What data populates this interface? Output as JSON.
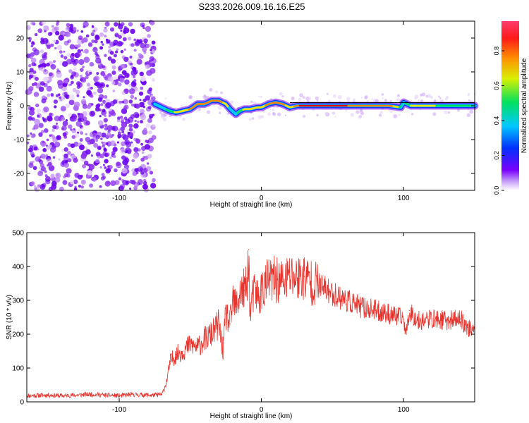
{
  "figure_title": "S233.2026.009.16.16.E25",
  "colors": {
    "snr_line": "#e8332c",
    "ridge_palette": [
      "#7a00ff",
      "#0040ff",
      "#00c8ff",
      "#00e060",
      "#ffe000",
      "#ff8000",
      "#e00000"
    ],
    "speckle_palette": [
      "#6a00f0",
      "#8a2cf0",
      "#b070f5",
      "#d0a8f8",
      "#e6d2fb"
    ]
  },
  "chart_data": [
    {
      "type": "heatmap",
      "xlabel": "Height of straight line (km)",
      "ylabel": "Frequency (Hz)",
      "xlim": [
        -165,
        150
      ],
      "ylim": [
        -25,
        25
      ],
      "xticks": [
        -100,
        0,
        100
      ],
      "yticks": [
        -20,
        -10,
        0,
        10,
        20
      ],
      "grid": false,
      "colorbar": {
        "label": "Normalized spectral amplitude",
        "range": [
          0,
          0.97
        ],
        "ticks": [
          "0.0",
          "0.2",
          "0.4",
          "0.6",
          "0.8"
        ]
      },
      "noise_region_x": [
        -165,
        -75
      ],
      "ridge": {
        "x": [
          -75,
          -70,
          -65,
          -60,
          -55,
          -50,
          -45,
          -40,
          -35,
          -30,
          -25,
          -22,
          -18,
          -15,
          -12,
          -8,
          -3,
          0,
          5,
          10,
          15,
          20,
          25,
          30,
          40,
          50,
          60,
          70,
          80,
          90,
          98,
          100,
          105,
          110,
          120,
          130,
          140,
          150
        ],
        "freq_hz": [
          0.5,
          -0.5,
          -1.5,
          -2,
          -1.5,
          -1,
          0.5,
          0.5,
          1.5,
          1.5,
          0.5,
          -1,
          -2.5,
          -1.5,
          -1,
          -1,
          -0.5,
          -0.5,
          0.5,
          1,
          0.5,
          -0.5,
          0,
          0,
          0,
          0,
          0,
          0,
          0,
          0,
          -0.5,
          1,
          0,
          0,
          0,
          0,
          0,
          0
        ],
        "amplitude": [
          0.4,
          0.3,
          0.5,
          0.6,
          0.7,
          0.75,
          0.8,
          0.85,
          0.9,
          0.85,
          0.7,
          0.4,
          0.3,
          0.5,
          0.7,
          0.7,
          0.6,
          0.6,
          0.8,
          0.85,
          0.8,
          0.6,
          0.9,
          0.95,
          0.95,
          0.92,
          0.92,
          0.9,
          0.85,
          0.85,
          0.5,
          0.3,
          0.6,
          0.7,
          0.6,
          0.55,
          0.5,
          0.4
        ]
      }
    },
    {
      "type": "line",
      "xlabel": "Height of straight line (km)",
      "ylabel": "SNR (10 * v/v)",
      "xlim": [
        -165,
        150
      ],
      "ylim": [
        0,
        500
      ],
      "xticks": [
        -100,
        0,
        100
      ],
      "yticks": [
        0,
        100,
        200,
        300,
        400,
        500
      ],
      "grid": false,
      "series": [
        {
          "x": [
            -165,
            -150,
            -140,
            -130,
            -120,
            -110,
            -100,
            -90,
            -80,
            -75,
            -70,
            -67,
            -64,
            -60,
            -55,
            -50,
            -45,
            -40,
            -35,
            -30,
            -27,
            -25,
            -22,
            -20,
            -18,
            -15,
            -12,
            -10,
            -9,
            -8,
            -6,
            -4,
            -2,
            0,
            5,
            10,
            15,
            20,
            25,
            30,
            35,
            40,
            50,
            60,
            70,
            80,
            90,
            100,
            102,
            104,
            110,
            120,
            130,
            140,
            145,
            150
          ],
          "y": [
            18,
            20,
            18,
            20,
            22,
            20,
            18,
            22,
            20,
            20,
            22,
            55,
            120,
            140,
            150,
            170,
            160,
            185,
            200,
            230,
            150,
            260,
            230,
            300,
            280,
            320,
            330,
            340,
            450,
            260,
            310,
            330,
            300,
            330,
            360,
            360,
            355,
            370,
            365,
            370,
            355,
            345,
            320,
            300,
            280,
            270,
            260,
            245,
            200,
            270,
            240,
            245,
            240,
            245,
            220,
            210
          ]
        }
      ]
    }
  ]
}
